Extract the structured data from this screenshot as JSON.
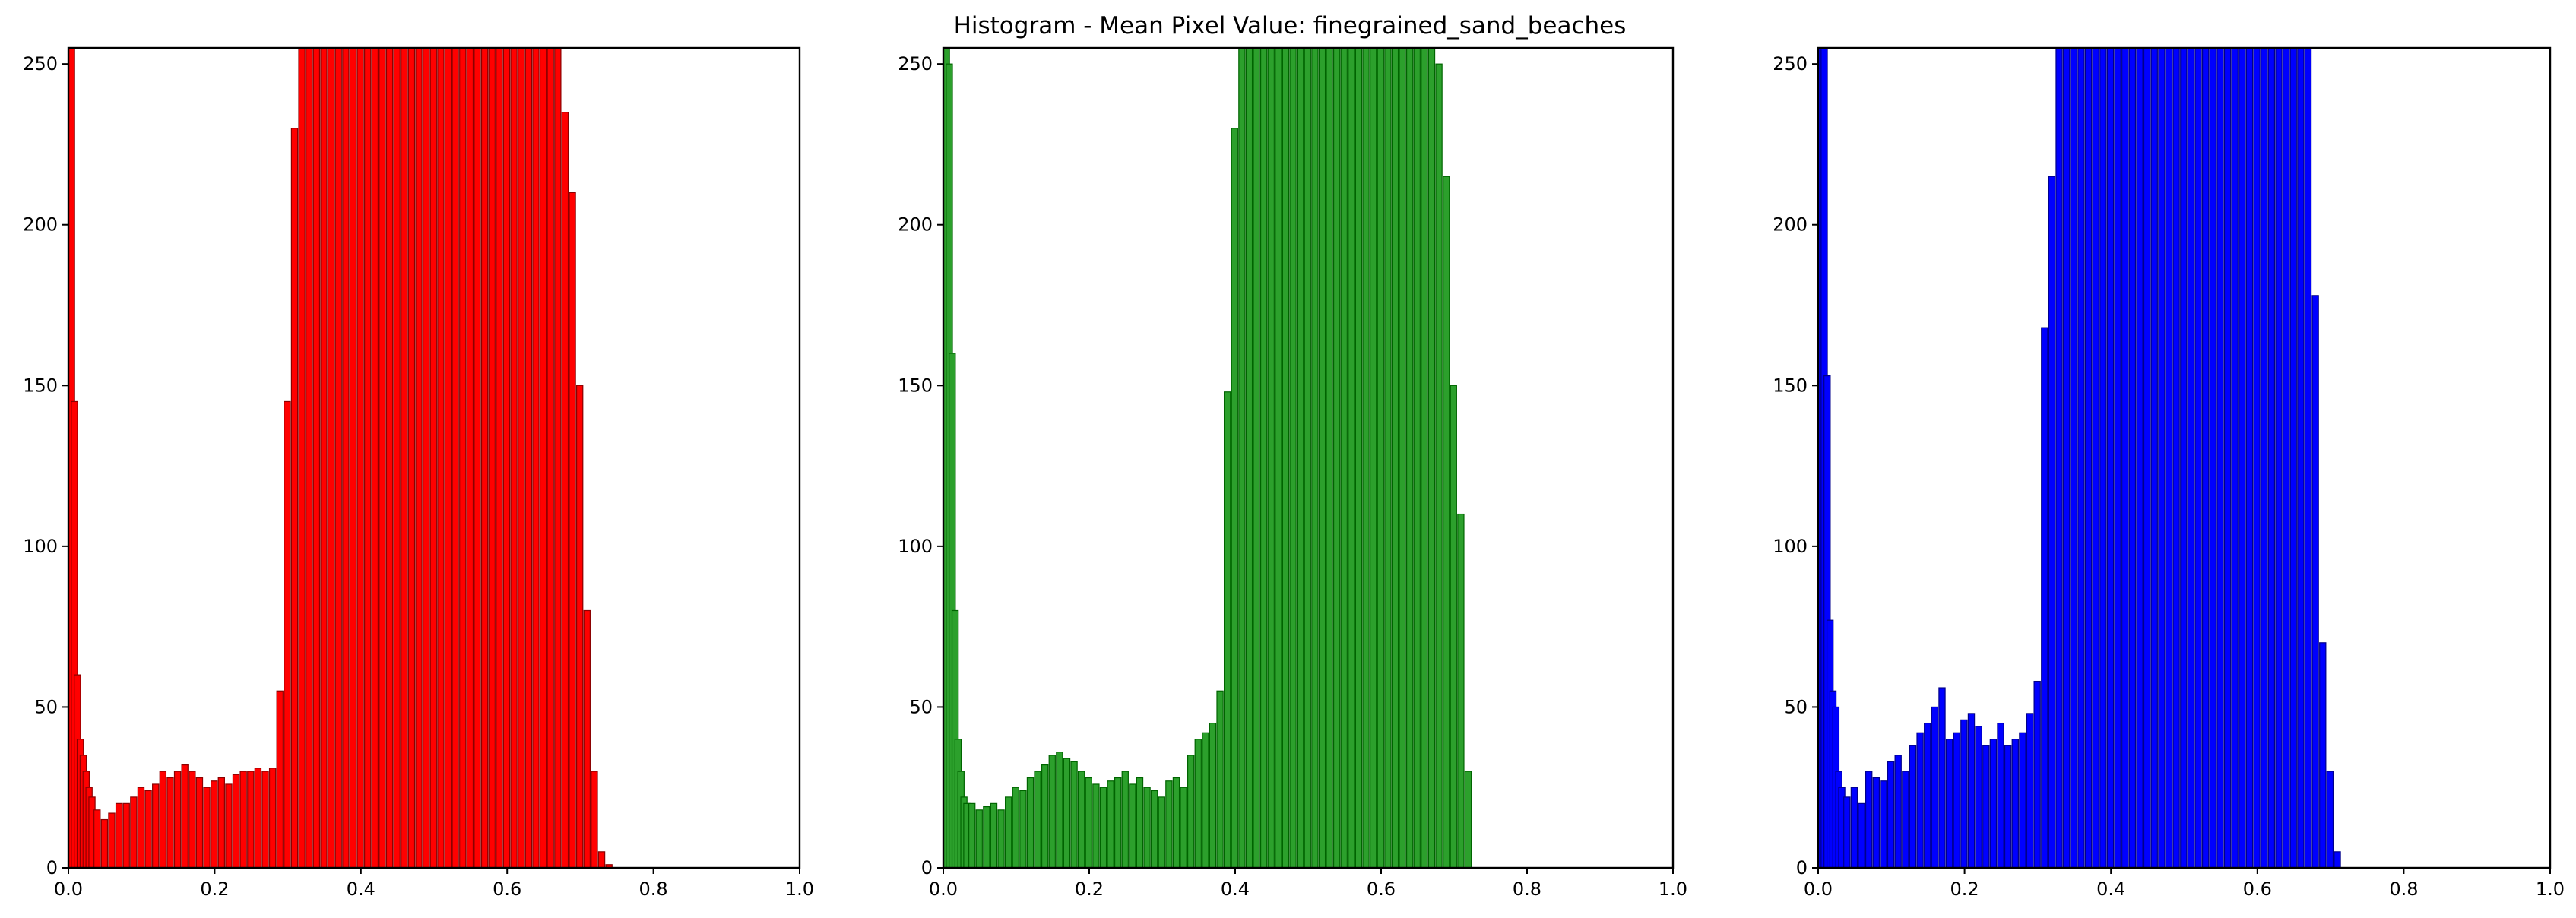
{
  "figure": {
    "title": "Histogram - Mean Pixel Value:  finegrained_sand_beaches"
  },
  "chart_data": [
    {
      "type": "bar",
      "title": "",
      "xlabel": "",
      "ylabel": "",
      "xlim": [
        0,
        1
      ],
      "ylim": [
        0,
        255
      ],
      "xticks": [
        "0.0",
        "0.2",
        "0.4",
        "0.6",
        "0.8",
        "1.0"
      ],
      "yticks": [
        "0",
        "50",
        "100",
        "150",
        "200",
        "250"
      ],
      "grid": false,
      "legend": false,
      "color": "#ff0000",
      "edge_color": "#8b0000",
      "series": [
        {
          "x": [
            0.0,
            0.004,
            0.008,
            0.012,
            0.016,
            0.02,
            0.024,
            0.028,
            0.035,
            0.045,
            0.055,
            0.065,
            0.075,
            0.085,
            0.095,
            0.105,
            0.115,
            0.125,
            0.135,
            0.145,
            0.155,
            0.165,
            0.175,
            0.185,
            0.195,
            0.205,
            0.215,
            0.225,
            0.235,
            0.245,
            0.255,
            0.265,
            0.275,
            0.285,
            0.295,
            0.305,
            0.315,
            0.325,
            0.335,
            0.345,
            0.355,
            0.365,
            0.375,
            0.385,
            0.395,
            0.405,
            0.415,
            0.425,
            0.435,
            0.445,
            0.455,
            0.465,
            0.475,
            0.485,
            0.495,
            0.505,
            0.515,
            0.525,
            0.535,
            0.545,
            0.555,
            0.565,
            0.575,
            0.585,
            0.595,
            0.605,
            0.615,
            0.625,
            0.635,
            0.645,
            0.655,
            0.665,
            0.675,
            0.685,
            0.695,
            0.705,
            0.715,
            0.725,
            0.735
          ],
          "values": [
            255,
            145,
            60,
            40,
            35,
            30,
            25,
            22,
            18,
            15,
            17,
            20,
            20,
            22,
            25,
            24,
            26,
            30,
            28,
            30,
            32,
            30,
            28,
            25,
            27,
            28,
            26,
            29,
            30,
            30,
            31,
            30,
            31,
            55,
            145,
            230,
            255,
            255,
            255,
            255,
            255,
            255,
            255,
            255,
            255,
            255,
            255,
            255,
            255,
            255,
            255,
            255,
            255,
            255,
            255,
            255,
            255,
            255,
            255,
            255,
            255,
            255,
            255,
            255,
            255,
            255,
            255,
            255,
            255,
            255,
            255,
            255,
            235,
            210,
            150,
            80,
            30,
            5,
            1
          ]
        }
      ]
    },
    {
      "type": "bar",
      "title": "",
      "xlabel": "",
      "ylabel": "",
      "xlim": [
        0,
        1
      ],
      "ylim": [
        0,
        255
      ],
      "xticks": [
        "0.0",
        "0.2",
        "0.4",
        "0.6",
        "0.8",
        "1.0"
      ],
      "yticks": [
        "0",
        "50",
        "100",
        "150",
        "200",
        "250"
      ],
      "grid": false,
      "legend": false,
      "color": "#2ca02c",
      "edge_color": "#006400",
      "series": [
        {
          "x": [
            0.0,
            0.004,
            0.008,
            0.012,
            0.016,
            0.02,
            0.024,
            0.028,
            0.035,
            0.045,
            0.055,
            0.065,
            0.075,
            0.085,
            0.095,
            0.105,
            0.115,
            0.125,
            0.135,
            0.145,
            0.155,
            0.165,
            0.175,
            0.185,
            0.195,
            0.205,
            0.215,
            0.225,
            0.235,
            0.245,
            0.255,
            0.265,
            0.275,
            0.285,
            0.295,
            0.305,
            0.315,
            0.325,
            0.335,
            0.345,
            0.355,
            0.365,
            0.375,
            0.385,
            0.395,
            0.405,
            0.415,
            0.425,
            0.435,
            0.445,
            0.455,
            0.465,
            0.475,
            0.485,
            0.495,
            0.505,
            0.515,
            0.525,
            0.535,
            0.545,
            0.555,
            0.565,
            0.575,
            0.585,
            0.595,
            0.605,
            0.615,
            0.625,
            0.635,
            0.645,
            0.655,
            0.665,
            0.675,
            0.685,
            0.695,
            0.705,
            0.715
          ],
          "values": [
            255,
            250,
            160,
            80,
            40,
            30,
            22,
            20,
            20,
            18,
            19,
            20,
            18,
            22,
            25,
            24,
            28,
            30,
            32,
            35,
            36,
            34,
            33,
            30,
            28,
            26,
            25,
            27,
            28,
            30,
            26,
            28,
            25,
            24,
            22,
            27,
            28,
            25,
            35,
            40,
            42,
            45,
            55,
            148,
            230,
            255,
            255,
            255,
            255,
            255,
            255,
            255,
            255,
            255,
            255,
            255,
            255,
            255,
            255,
            255,
            255,
            255,
            255,
            255,
            255,
            255,
            255,
            255,
            255,
            255,
            255,
            255,
            250,
            215,
            150,
            110,
            30
          ]
        }
      ]
    },
    {
      "type": "bar",
      "title": "",
      "xlabel": "",
      "ylabel": "",
      "xlim": [
        0,
        1
      ],
      "ylim": [
        0,
        255
      ],
      "xticks": [
        "0.0",
        "0.2",
        "0.4",
        "0.6",
        "0.8",
        "1.0"
      ],
      "yticks": [
        "0",
        "50",
        "100",
        "150",
        "200",
        "250"
      ],
      "grid": false,
      "legend": false,
      "color": "#0000ff",
      "edge_color": "#00008b",
      "series": [
        {
          "x": [
            0.0,
            0.004,
            0.008,
            0.012,
            0.016,
            0.02,
            0.024,
            0.028,
            0.035,
            0.045,
            0.055,
            0.065,
            0.075,
            0.085,
            0.095,
            0.105,
            0.115,
            0.125,
            0.135,
            0.145,
            0.155,
            0.165,
            0.175,
            0.185,
            0.195,
            0.205,
            0.215,
            0.225,
            0.235,
            0.245,
            0.255,
            0.265,
            0.275,
            0.285,
            0.295,
            0.305,
            0.315,
            0.325,
            0.335,
            0.345,
            0.355,
            0.365,
            0.375,
            0.385,
            0.395,
            0.405,
            0.415,
            0.425,
            0.435,
            0.445,
            0.455,
            0.465,
            0.475,
            0.485,
            0.495,
            0.505,
            0.515,
            0.525,
            0.535,
            0.545,
            0.555,
            0.565,
            0.575,
            0.585,
            0.595,
            0.605,
            0.615,
            0.625,
            0.635,
            0.645,
            0.655,
            0.665,
            0.675,
            0.685,
            0.695,
            0.705
          ],
          "values": [
            255,
            255,
            153,
            77,
            55,
            50,
            30,
            25,
            22,
            25,
            20,
            30,
            28,
            27,
            33,
            35,
            30,
            38,
            42,
            45,
            50,
            56,
            40,
            42,
            46,
            48,
            44,
            38,
            40,
            45,
            38,
            40,
            42,
            48,
            58,
            168,
            215,
            255,
            255,
            255,
            255,
            255,
            255,
            255,
            255,
            255,
            255,
            255,
            255,
            255,
            255,
            255,
            255,
            255,
            255,
            255,
            255,
            255,
            255,
            255,
            255,
            255,
            255,
            255,
            255,
            255,
            255,
            255,
            255,
            255,
            255,
            255,
            178,
            70,
            30,
            5
          ]
        }
      ]
    }
  ]
}
